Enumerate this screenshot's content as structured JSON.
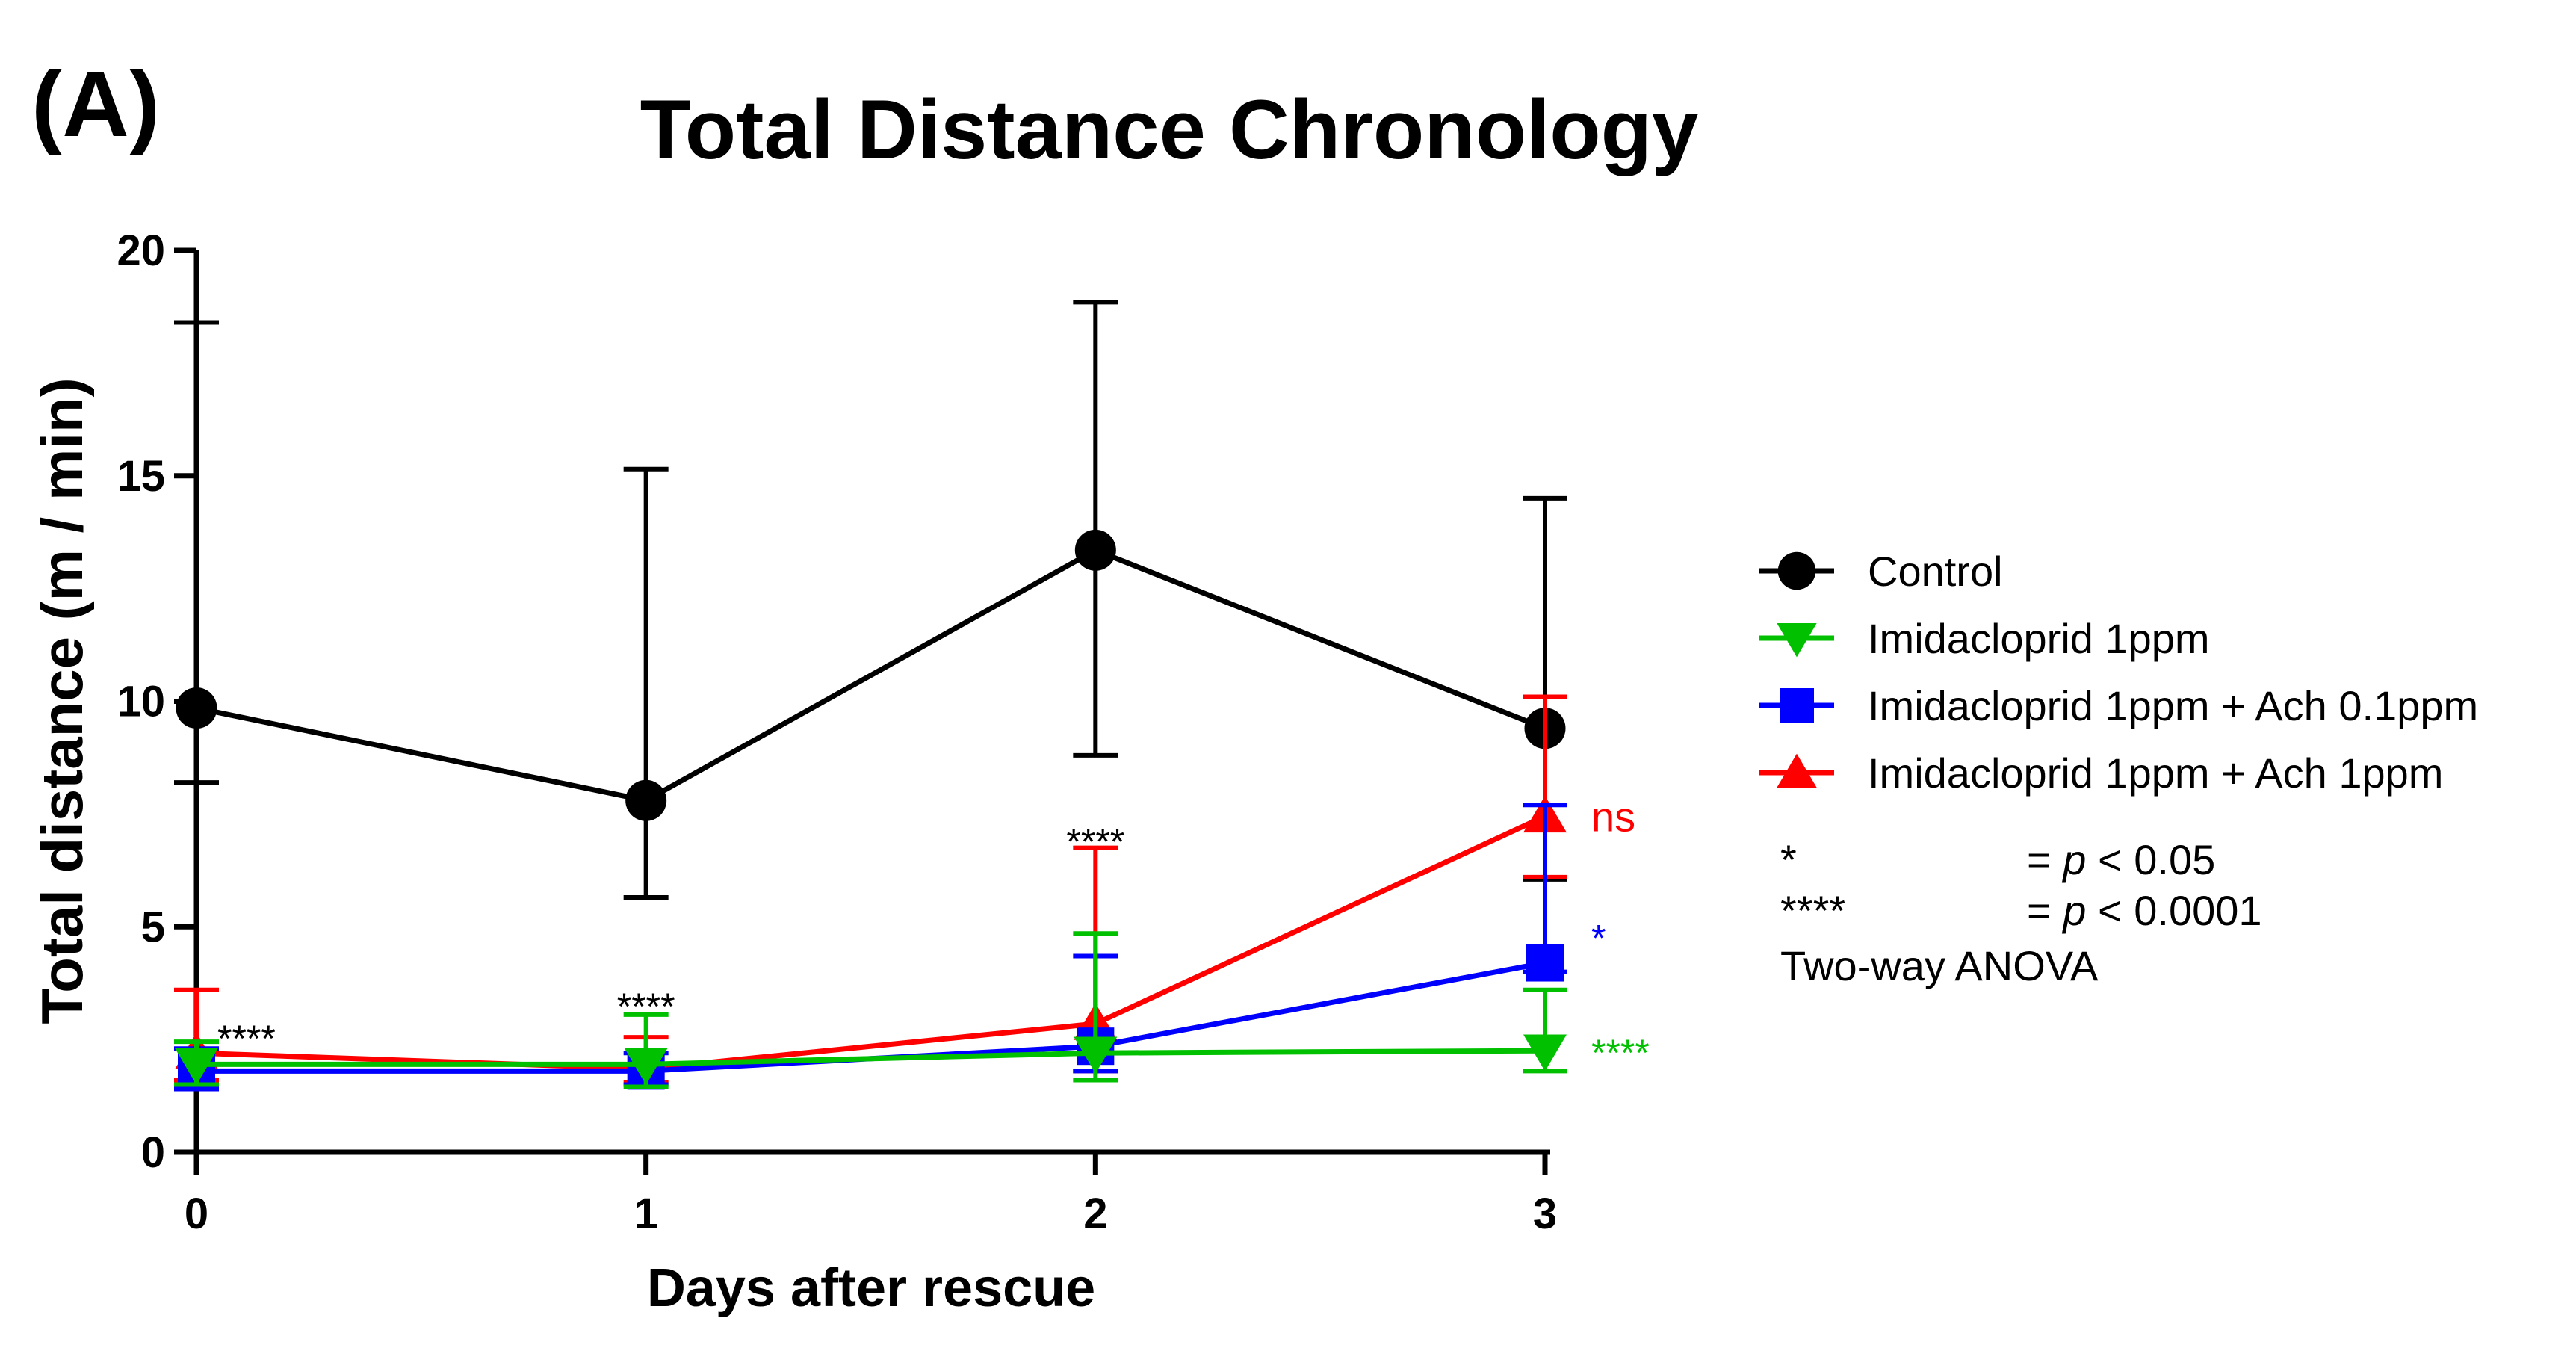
{
  "panel_label": "(A)",
  "chart_data": {
    "type": "line",
    "title": "Total Distance Chronology",
    "xlabel": "Days after rescue",
    "ylabel": "Total distance (m / min)",
    "x": [
      0,
      1,
      2,
      3
    ],
    "xlim": [
      0,
      3
    ],
    "ylim": [
      0,
      20
    ],
    "xticks": [
      0,
      1,
      2,
      3
    ],
    "yticks": [
      0,
      5,
      10,
      15,
      20
    ],
    "grid": false,
    "legend_position": "right",
    "series": [
      {
        "name": "Control",
        "color": "#000000",
        "marker": "circle",
        "values": [
          9.85,
          7.8,
          13.35,
          9.4
        ],
        "err_upper": [
          18.4,
          15.15,
          18.85,
          14.5
        ],
        "err_lower": [
          8.2,
          5.65,
          8.8,
          6.05
        ]
      },
      {
        "name": "Imidacloprid 1ppm",
        "color": "#00c000",
        "marker": "triangle-down",
        "values": [
          1.95,
          1.95,
          2.2,
          2.25
        ],
        "err_upper": [
          2.45,
          3.05,
          4.85,
          3.6
        ],
        "err_lower": [
          1.5,
          1.45,
          1.6,
          1.8
        ]
      },
      {
        "name": "Imidacloprid 1ppm + Ach 0.1ppm",
        "color": "#0000ff",
        "marker": "square",
        "values": [
          1.8,
          1.8,
          2.35,
          4.2
        ],
        "err_upper": [
          2.3,
          2.2,
          4.35,
          7.7
        ],
        "err_lower": [
          1.4,
          1.5,
          1.8,
          4.0
        ]
      },
      {
        "name": "Imidacloprid 1ppm + Ach 1ppm",
        "color": "#ff0000",
        "marker": "triangle-up",
        "values": [
          2.2,
          1.85,
          2.85,
          7.45
        ],
        "err_upper": [
          3.6,
          2.55,
          6.75,
          10.1
        ],
        "err_lower": [
          1.6,
          1.55,
          1.8,
          6.1
        ]
      }
    ],
    "annotations": [
      {
        "text": "****",
        "x": 0,
        "y": 2.6,
        "color": "#000000",
        "anchor": "right-of-point"
      },
      {
        "text": "****",
        "x": 1,
        "y": 3.25,
        "color": "#000000",
        "anchor": "above"
      },
      {
        "text": "****",
        "x": 2,
        "y": 6.9,
        "color": "#000000",
        "anchor": "above"
      },
      {
        "text": "ns",
        "x": 3,
        "y": 7.45,
        "color": "#ff0000",
        "anchor": "right"
      },
      {
        "text": "*",
        "x": 3,
        "y": 4.8,
        "color": "#0000ff",
        "anchor": "right"
      },
      {
        "text": "****",
        "x": 3,
        "y": 2.25,
        "color": "#00c000",
        "anchor": "right"
      }
    ],
    "significance_key": [
      {
        "symbol": "*",
        "meaning_prefix": "= ",
        "meaning_p": "p",
        "meaning_suffix": " < 0.05"
      },
      {
        "symbol": "****",
        "meaning_prefix": "= ",
        "meaning_p": "p",
        "meaning_suffix": " < 0.0001"
      }
    ],
    "test_note": "Two-way ANOVA"
  }
}
